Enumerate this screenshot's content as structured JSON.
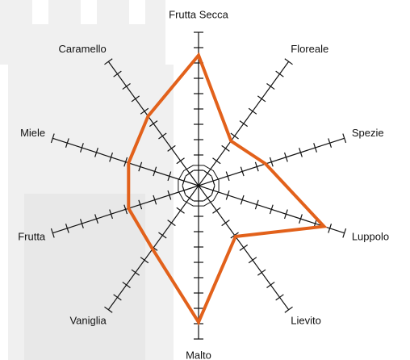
{
  "chart_data": {
    "type": "radar",
    "categories": [
      "Frutta Secca",
      "Floreale",
      "Spezie",
      "Luppolo",
      "Lievito",
      "Malto",
      "Vaniglia",
      "Frutta",
      "Miele",
      "Caramello"
    ],
    "series": [
      {
        "color": "#e2611b",
        "values": [
          8.5,
          3.6,
          4.6,
          8.6,
          4.1,
          8.9,
          5.1,
          4.8,
          4.8,
          5.6
        ]
      }
    ],
    "rlim": [
      0,
      10
    ],
    "rticks": [
      1,
      2,
      3,
      4,
      5,
      6,
      7,
      8,
      9,
      10
    ]
  }
}
